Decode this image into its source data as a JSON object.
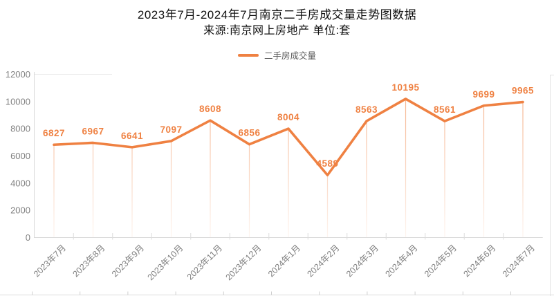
{
  "header": {
    "title": "2023年7月-2024年7月南京二手房成交量走势图数据",
    "subtitle": "来源:南京网上房地产 单位:套"
  },
  "legend": {
    "items": [
      {
        "label": "二手房成交量",
        "color": "#EF8142"
      }
    ]
  },
  "chart_data": {
    "type": "line",
    "title": "2023年7月-2024年7月南京二手房成交量走势图数据",
    "subtitle": "来源:南京网上房地产 单位:套",
    "categories": [
      "2023年7月",
      "2023年8月",
      "2023年9月",
      "2023年10月",
      "2023年11月",
      "2023年12月",
      "2024年1月",
      "2024年2月",
      "2024年3月",
      "2024年4月",
      "2024年5月",
      "2024年6月",
      "2024年7月"
    ],
    "series": [
      {
        "name": "二手房成交量",
        "color": "#EF8142",
        "values": [
          6827,
          6967,
          6641,
          7097,
          8608,
          6856,
          8004,
          4589,
          8563,
          10195,
          8561,
          9699,
          9965
        ]
      }
    ],
    "ylim": [
      0,
      12000
    ],
    "yticks": [
      0,
      2000,
      4000,
      6000,
      8000,
      10000,
      12000
    ],
    "grid": false,
    "legend_position": "top",
    "data_labels": true,
    "drop_lines": true,
    "colors": {
      "line": "#EF8142",
      "data_label": "#EF8142",
      "axis_text": "#808080",
      "x_label_text": "#7F7F7F",
      "axis_line": "#D9D9D9"
    }
  }
}
